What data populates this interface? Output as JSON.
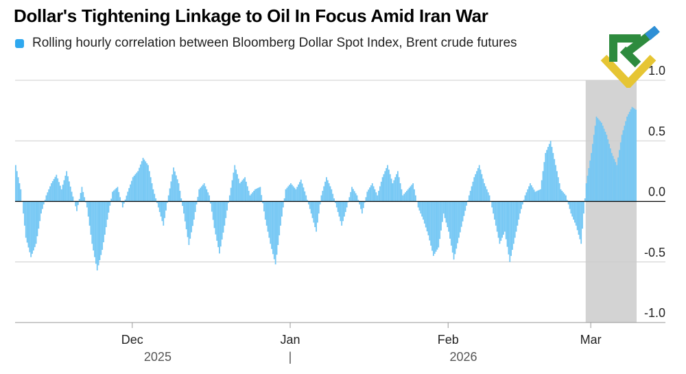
{
  "chart_data": {
    "type": "area",
    "title": "Dollar's Tightening Linkage to Oil In Focus Amid Iran War",
    "legend": [
      "Rolling hourly correlation between Bloomberg Dollar Spot Index, Brent crude futures"
    ],
    "legend_position": "top-left",
    "colors": {
      "series": "#74c7f4",
      "legend": "#2ea8ef",
      "highlight": "#d3d3d3",
      "grid": "#cccccc"
    },
    "xlabel": "",
    "ylabel": "",
    "ylim": [
      -1.0,
      1.0
    ],
    "yticks": [
      1.0,
      0.5,
      0.0,
      -0.5,
      -1.0
    ],
    "ytick_labels": [
      "1.0",
      "0.5",
      "0.0",
      "-0.5",
      "-1.0"
    ],
    "xlim": [
      "2025-11-08",
      "2026-03-10"
    ],
    "xticks": [
      {
        "date": "2025-12-01",
        "label": "Dec"
      },
      {
        "date": "2026-01-01",
        "label": "Jan"
      },
      {
        "date": "2026-02-01",
        "label": "Feb"
      },
      {
        "date": "2026-03-01",
        "label": "Mar"
      }
    ],
    "year_labels": [
      {
        "date": "2025-12-06",
        "label": "2025"
      },
      {
        "date": "2026-01-01",
        "label": "|"
      },
      {
        "date": "2026-02-04",
        "label": "2026"
      }
    ],
    "highlight_range": [
      "2026-02-28",
      "2026-03-10"
    ],
    "series": [
      {
        "name": "Rolling hourly correlation between Bloomberg Dollar Spot Index, Brent crude futures",
        "points": [
          [
            "2025-11-08",
            0.3
          ],
          [
            "2025-11-09",
            0.1
          ],
          [
            "2025-11-10",
            -0.3
          ],
          [
            "2025-11-11",
            -0.46
          ],
          [
            "2025-11-12",
            -0.35
          ],
          [
            "2025-11-13",
            -0.1
          ],
          [
            "2025-11-14",
            0.05
          ],
          [
            "2025-11-15",
            0.15
          ],
          [
            "2025-11-16",
            0.22
          ],
          [
            "2025-11-17",
            0.1
          ],
          [
            "2025-11-18",
            0.25
          ],
          [
            "2025-11-19",
            0.08
          ],
          [
            "2025-11-20",
            -0.08
          ],
          [
            "2025-11-21",
            0.12
          ],
          [
            "2025-11-22",
            -0.05
          ],
          [
            "2025-11-23",
            -0.35
          ],
          [
            "2025-11-24",
            -0.57
          ],
          [
            "2025-11-25",
            -0.4
          ],
          [
            "2025-11-26",
            -0.15
          ],
          [
            "2025-11-27",
            0.08
          ],
          [
            "2025-11-28",
            0.12
          ],
          [
            "2025-11-29",
            -0.05
          ],
          [
            "2025-11-30",
            0.08
          ],
          [
            "2025-12-01",
            0.2
          ],
          [
            "2025-12-02",
            0.25
          ],
          [
            "2025-12-03",
            0.36
          ],
          [
            "2025-12-04",
            0.3
          ],
          [
            "2025-12-05",
            0.1
          ],
          [
            "2025-12-06",
            -0.05
          ],
          [
            "2025-12-07",
            -0.2
          ],
          [
            "2025-12-08",
            0.05
          ],
          [
            "2025-12-09",
            0.28
          ],
          [
            "2025-12-10",
            0.15
          ],
          [
            "2025-12-11",
            -0.1
          ],
          [
            "2025-12-12",
            -0.36
          ],
          [
            "2025-12-13",
            -0.15
          ],
          [
            "2025-12-14",
            0.1
          ],
          [
            "2025-12-15",
            0.15
          ],
          [
            "2025-12-16",
            0.05
          ],
          [
            "2025-12-17",
            -0.22
          ],
          [
            "2025-12-18",
            -0.43
          ],
          [
            "2025-12-19",
            -0.2
          ],
          [
            "2025-12-20",
            0.05
          ],
          [
            "2025-12-21",
            0.3
          ],
          [
            "2025-12-22",
            0.15
          ],
          [
            "2025-12-23",
            0.2
          ],
          [
            "2025-12-24",
            0.05
          ],
          [
            "2025-12-25",
            0.1
          ],
          [
            "2025-12-26",
            0.12
          ],
          [
            "2025-12-27",
            -0.15
          ],
          [
            "2025-12-28",
            -0.35
          ],
          [
            "2025-12-29",
            -0.52
          ],
          [
            "2025-12-30",
            -0.2
          ],
          [
            "2025-12-31",
            0.1
          ],
          [
            "2026-01-01",
            0.15
          ],
          [
            "2026-01-02",
            0.1
          ],
          [
            "2026-01-03",
            0.18
          ],
          [
            "2026-01-04",
            0.05
          ],
          [
            "2026-01-05",
            -0.1
          ],
          [
            "2026-01-06",
            -0.25
          ],
          [
            "2026-01-07",
            0.05
          ],
          [
            "2026-01-08",
            0.2
          ],
          [
            "2026-01-09",
            0.1
          ],
          [
            "2026-01-10",
            -0.05
          ],
          [
            "2026-01-11",
            -0.2
          ],
          [
            "2026-01-12",
            -0.05
          ],
          [
            "2026-01-13",
            0.12
          ],
          [
            "2026-01-14",
            0.05
          ],
          [
            "2026-01-15",
            -0.1
          ],
          [
            "2026-01-16",
            0.08
          ],
          [
            "2026-01-17",
            0.15
          ],
          [
            "2026-01-18",
            0.05
          ],
          [
            "2026-01-19",
            0.2
          ],
          [
            "2026-01-20",
            0.3
          ],
          [
            "2026-01-21",
            0.15
          ],
          [
            "2026-01-22",
            0.25
          ],
          [
            "2026-01-23",
            0.05
          ],
          [
            "2026-01-24",
            0.1
          ],
          [
            "2026-01-25",
            0.15
          ],
          [
            "2026-01-26",
            -0.05
          ],
          [
            "2026-01-27",
            -0.15
          ],
          [
            "2026-01-28",
            -0.28
          ],
          [
            "2026-01-29",
            -0.45
          ],
          [
            "2026-01-30",
            -0.38
          ],
          [
            "2026-01-31",
            -0.1
          ],
          [
            "2026-02-01",
            -0.25
          ],
          [
            "2026-02-02",
            -0.48
          ],
          [
            "2026-02-03",
            -0.3
          ],
          [
            "2026-02-04",
            -0.12
          ],
          [
            "2026-02-05",
            0.05
          ],
          [
            "2026-02-06",
            0.2
          ],
          [
            "2026-02-07",
            0.3
          ],
          [
            "2026-02-08",
            0.15
          ],
          [
            "2026-02-09",
            0.05
          ],
          [
            "2026-02-10",
            -0.15
          ],
          [
            "2026-02-11",
            -0.35
          ],
          [
            "2026-02-12",
            -0.25
          ],
          [
            "2026-02-13",
            -0.5
          ],
          [
            "2026-02-14",
            -0.3
          ],
          [
            "2026-02-15",
            -0.1
          ],
          [
            "2026-02-16",
            0.05
          ],
          [
            "2026-02-17",
            0.15
          ],
          [
            "2026-02-18",
            0.08
          ],
          [
            "2026-02-19",
            0.1
          ],
          [
            "2026-02-20",
            0.4
          ],
          [
            "2026-02-21",
            0.5
          ],
          [
            "2026-02-22",
            0.3
          ],
          [
            "2026-02-23",
            0.1
          ],
          [
            "2026-02-24",
            0.05
          ],
          [
            "2026-02-25",
            -0.1
          ],
          [
            "2026-02-26",
            -0.2
          ],
          [
            "2026-02-27",
            -0.35
          ],
          [
            "2026-02-28",
            0.15
          ],
          [
            "2026-03-01",
            0.4
          ],
          [
            "2026-03-02",
            0.7
          ],
          [
            "2026-03-03",
            0.65
          ],
          [
            "2026-03-04",
            0.55
          ],
          [
            "2026-03-05",
            0.4
          ],
          [
            "2026-03-06",
            0.3
          ],
          [
            "2026-03-07",
            0.55
          ],
          [
            "2026-03-08",
            0.7
          ],
          [
            "2026-03-09",
            0.78
          ],
          [
            "2026-03-10",
            0.75
          ]
        ]
      }
    ]
  },
  "logo": {
    "name": "green-yellow-chevron-logo"
  }
}
